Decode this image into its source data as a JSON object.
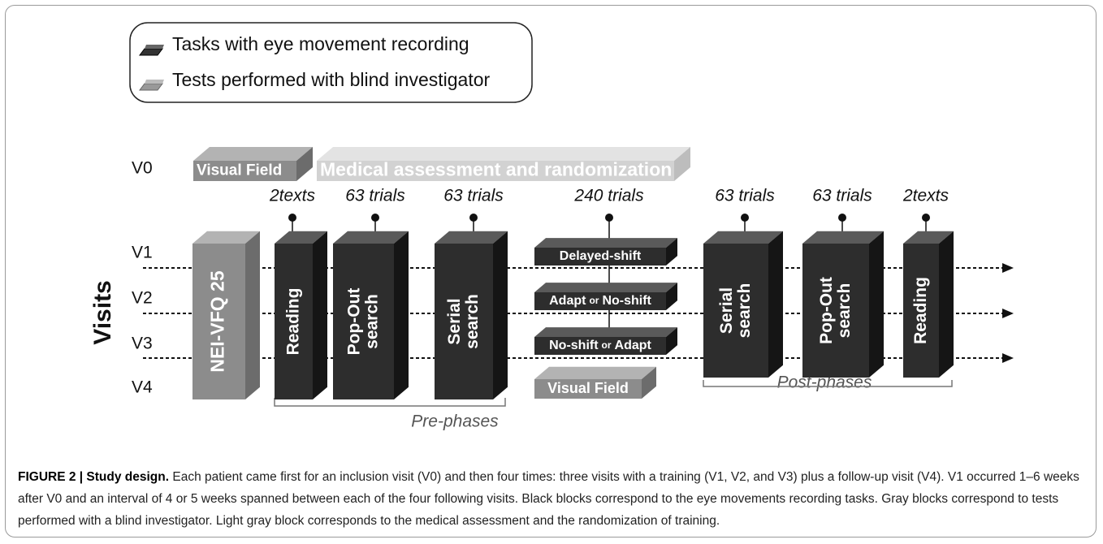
{
  "legend": [
    "Tasks with eye movement recording",
    "Tests performed with blind investigator"
  ],
  "axis_label": "Visits",
  "visits": [
    "V0",
    "V1",
    "V2",
    "V3",
    "V4"
  ],
  "counts": [
    "2texts",
    "63 trials",
    "63 trials",
    "240 trials",
    "63 trials",
    "63 trials",
    "2texts"
  ],
  "blocks": [
    {
      "lines": [
        "Visual Field"
      ]
    },
    {
      "lines": [
        "Medical assessment and randomization"
      ]
    },
    {
      "lines": [
        "NEI-VFQ 25"
      ]
    },
    {
      "lines": [
        "Reading"
      ]
    },
    {
      "lines": [
        "Pop-Out",
        "search"
      ]
    },
    {
      "lines": [
        "Serial",
        "search"
      ]
    },
    {
      "lines": [
        "Delayed-shift"
      ]
    },
    {
      "parts": [
        "Adapt",
        "or",
        "No-shift"
      ]
    },
    {
      "parts": [
        "No-shift",
        "or",
        "Adapt"
      ]
    },
    {
      "lines": [
        "Visual Field"
      ]
    },
    {
      "lines": [
        "Serial",
        "search"
      ]
    },
    {
      "lines": [
        "Pop-Out",
        "search"
      ]
    },
    {
      "lines": [
        "Reading"
      ]
    }
  ],
  "phases": [
    "Pre-phases",
    "Post-phases"
  ],
  "caption": {
    "title": "FIGURE 2 | Study design.",
    "text": "Each patient came first for an inclusion visit (V0) and then four times: three visits with a training (V1, V2, and V3) plus a follow-up visit (V4). V1 occurred 1–6 weeks after V0 and an interval of 4 or 5 weeks spanned between each of the four following visits. Black blocks correspond to the eye movements recording tasks. Gray blocks correspond to tests performed with a blind investigator. Light gray block corresponds to the medical assessment and the randomization of training."
  }
}
